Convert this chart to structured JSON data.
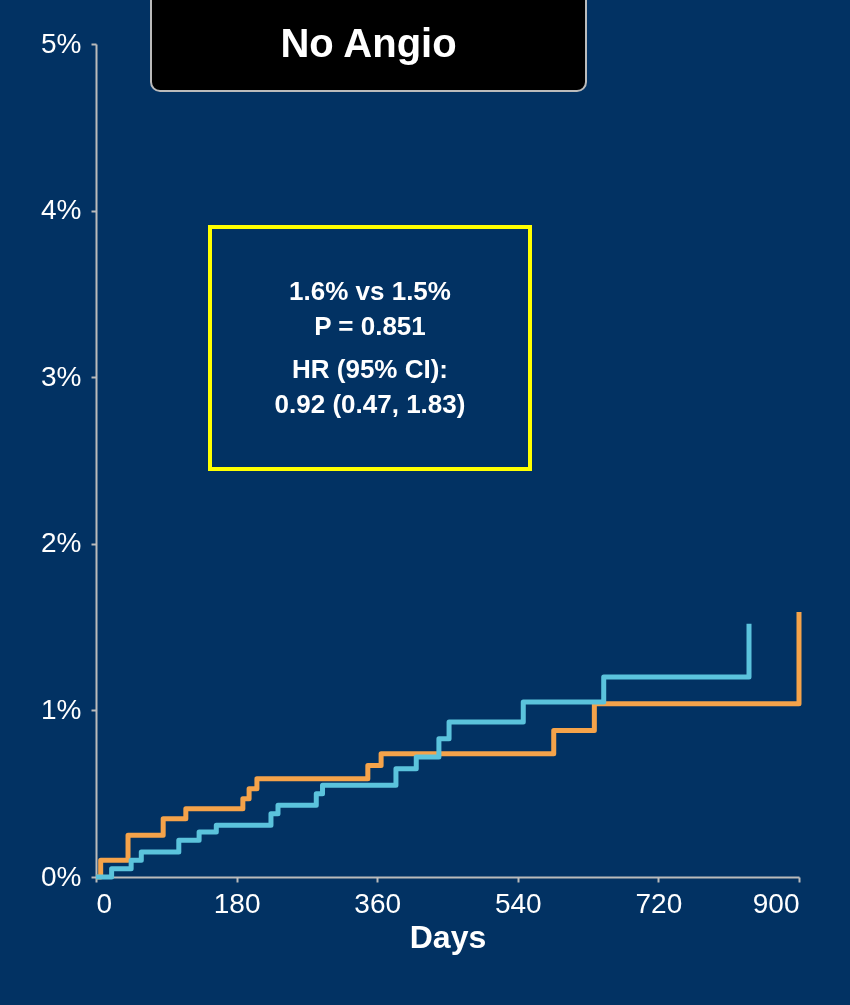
{
  "chart_data": {
    "type": "step",
    "title": "No Angio",
    "xlabel": "Days",
    "annotations": [
      "1.6% vs 1.5%",
      "P = 0.851",
      "HR (95% CI):",
      "0.92 (0.47, 1.83)"
    ],
    "xlim": [
      0,
      900
    ],
    "xticks": [
      0,
      180,
      360,
      540,
      720,
      900
    ],
    "ylim": [
      0,
      5
    ],
    "yticks": [
      {
        "value": 0,
        "label": "0%"
      },
      {
        "value": 1,
        "label": "1%"
      },
      {
        "value": 2,
        "label": "2%"
      },
      {
        "value": 3,
        "label": "3%"
      },
      {
        "value": 4,
        "label": "4%"
      },
      {
        "value": 5,
        "label": "5%"
      }
    ],
    "grid": false,
    "line_style": "solid",
    "marker": "none",
    "series": [
      {
        "color": "#f5a34a",
        "x": [
          0,
          6,
          41,
          86,
          115,
          188,
          196,
          206,
          348,
          365,
          586,
          638,
          900,
          900
        ],
        "values": [
          0,
          0.1,
          0.25,
          0.35,
          0.41,
          0.47,
          0.53,
          0.59,
          0.67,
          0.74,
          0.88,
          1.04,
          1.04,
          1.59
        ]
      },
      {
        "color": "#5bc3dc",
        "x": [
          0,
          20,
          45,
          58,
          106,
          132,
          154,
          224,
          233,
          282,
          290,
          384,
          410,
          439,
          452,
          547,
          650,
          836,
          836
        ],
        "values": [
          0,
          0.05,
          0.1,
          0.15,
          0.22,
          0.27,
          0.31,
          0.38,
          0.43,
          0.5,
          0.55,
          0.65,
          0.72,
          0.83,
          0.93,
          1.05,
          1.2,
          1.2,
          1.52
        ]
      }
    ]
  }
}
